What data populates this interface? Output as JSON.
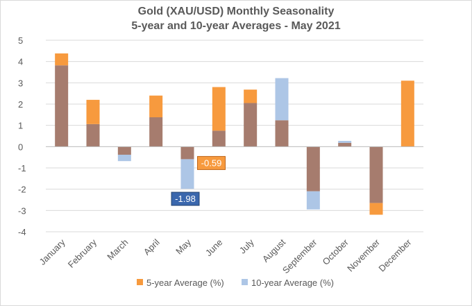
{
  "chart_data": {
    "type": "bar",
    "title": "Gold (XAU/USD) Monthly Seasonality",
    "subtitle": "5-year and 10-year Averages - May 2021",
    "categories": [
      "January",
      "February",
      "March",
      "April",
      "May",
      "June",
      "July",
      "August",
      "September",
      "October",
      "November",
      "December"
    ],
    "series": [
      {
        "name": "5-year Average (%)",
        "color": "#f79a3e",
        "values": [
          4.38,
          2.2,
          -0.38,
          2.4,
          -0.59,
          2.8,
          2.68,
          1.24,
          -2.1,
          0.18,
          -3.2,
          3.1
        ]
      },
      {
        "name": "10-year Average (%)",
        "color": "#adc6e6",
        "values": [
          3.82,
          1.06,
          -0.68,
          1.38,
          -1.98,
          0.75,
          2.05,
          3.22,
          -2.95,
          0.27,
          -2.65,
          0.0
        ]
      }
    ],
    "overlap_color": "#a67c6e",
    "ylim": [
      -4,
      5
    ],
    "yticks": [
      "5",
      "4",
      "3",
      "2",
      "1",
      "0",
      "-1",
      "-2",
      "-3",
      "-4"
    ],
    "xlabel": "",
    "ylabel": "",
    "annotations": [
      {
        "text": "-0.59",
        "series": "5-year Average (%)",
        "category": "May",
        "value": -0.59,
        "bg": "#f79a3e",
        "border": "#c0661a"
      },
      {
        "text": "-1.98",
        "series": "10-year Average (%)",
        "category": "May",
        "value": -1.98,
        "bg": "#3a67ad",
        "border": "#22436f"
      }
    ],
    "legend_position": "bottom"
  }
}
